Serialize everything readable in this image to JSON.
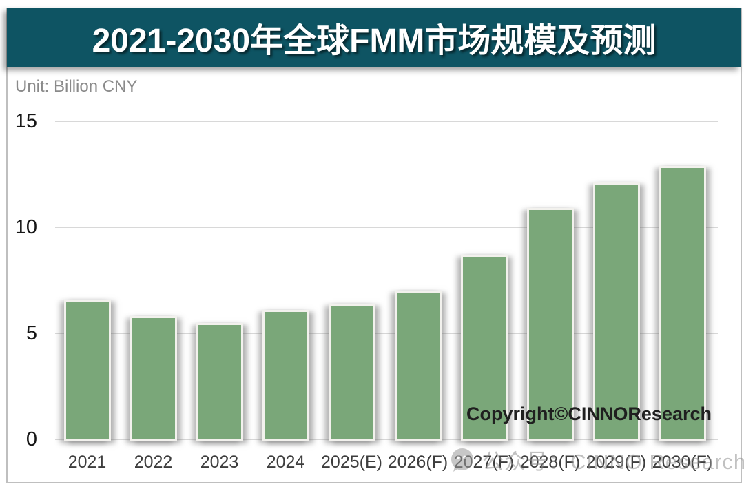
{
  "header": {
    "title": "2021-2030年全球FMM市场规模及预测",
    "bg_color": "#0e5463",
    "text_color": "#ffffff"
  },
  "chart": {
    "unit_label": "Unit: Billion CNY",
    "copyright": "Copyright©CINNOResearch",
    "watermark": {
      "icon": "wechat-icon",
      "text": "公众号：CINNO Research"
    },
    "colors": {
      "bar_fill": "#7aa779",
      "bar_border": "#f2f1ed",
      "gridline": "#d8d8d8",
      "title_bg": "#0e5463"
    }
  },
  "chart_data": {
    "type": "bar",
    "title": "2021-2030年全球FMM市场规模及预测",
    "unit": "Billion CNY",
    "categories": [
      "2021",
      "2022",
      "2023",
      "2024",
      "2025(E)",
      "2026(F)",
      "2027(F)",
      "2028(F)",
      "2029(F)",
      "2030(F)"
    ],
    "values": [
      6.5,
      5.7,
      5.4,
      6.0,
      6.3,
      6.9,
      8.6,
      10.8,
      12.0,
      12.8
    ],
    "xlabel": "",
    "ylabel": "Billion CNY",
    "ylim": [
      0,
      15
    ],
    "yticks": [
      0,
      5,
      10,
      15
    ],
    "grid": true,
    "legend": false,
    "annotations": [
      "Copyright©CINNOResearch",
      "公众号：CINNO Research"
    ]
  }
}
